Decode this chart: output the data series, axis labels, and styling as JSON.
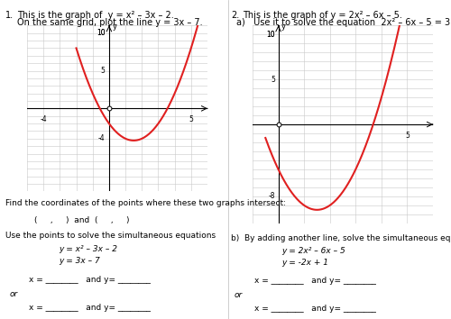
{
  "bg_color": "#ffffff",
  "left_panel": {
    "title_num": "1.",
    "title_text": "This is the graph of  y = x² – 3x – 2.",
    "subtitle_text": "On the same grid, plot the line y = 3x – 7.",
    "graph": {
      "xlim": [
        -5,
        6
      ],
      "ylim": [
        -11,
        11
      ],
      "xticks_labeled": [
        -4,
        5
      ],
      "yticks_labeled": [
        -4,
        5,
        10
      ],
      "curve_color": "#e02020",
      "curve_lw": 1.5,
      "curve_xmin": -2.0,
      "curve_xmax": 5.5
    },
    "below_graph": {
      "line1": "Find the coordinates of the points where these two graphs intersect:",
      "line2": "(     ,     )  and  (     ,     )",
      "line3": "Use the points to solve the simultaneous equations",
      "eq1": "y = x² – 3x – 2",
      "eq2": "y = 3x – 7",
      "blank1": "x = ________   and y= ________",
      "or_text": "or",
      "blank2": "x = ________   and y= ________"
    }
  },
  "right_panel": {
    "title_num": "2.",
    "title_text": "This is the graph of y = 2x² – 6x – 5.",
    "subtitle_a": "a)   Use it to solve the equation  2x² – 6x – 5 = 3.",
    "graph": {
      "xlim": [
        -1,
        6
      ],
      "ylim": [
        -11,
        11
      ],
      "xticks_labeled": [
        5
      ],
      "yticks_labeled": [
        -8,
        5,
        10
      ],
      "curve_color": "#e02020",
      "curve_lw": 1.5,
      "curve_xmin": -0.5,
      "curve_xmax": 5.5
    },
    "below_graph": {
      "subtitle_b": "b)  By adding another line, solve the simultaneous equations",
      "eq1": "y = 2x² – 6x – 5",
      "eq2": "y = -2x + 1",
      "blank1": "x = ________   and y= ________",
      "or_text": "or",
      "blank2": "x = ________   and y= ________"
    }
  },
  "font_size_title": 7.0,
  "font_size_body": 6.5,
  "font_size_eq": 6.5,
  "font_size_tick": 5.5
}
